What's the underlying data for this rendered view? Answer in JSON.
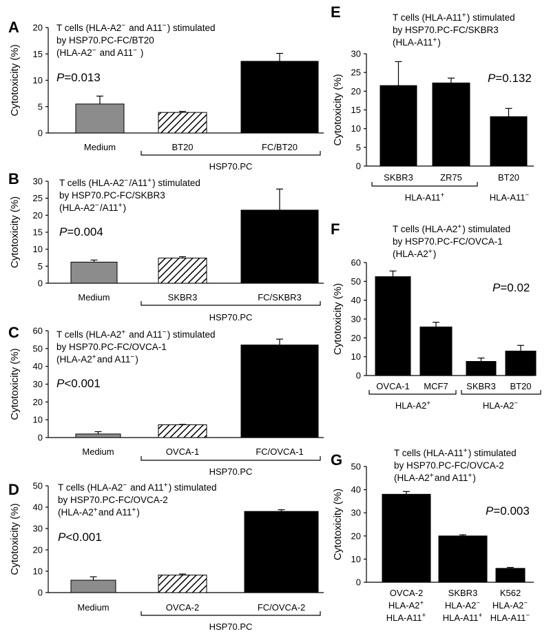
{
  "chart_data": [
    {
      "panel": "A",
      "type": "bar",
      "title": [
        "T cells (HLA-A2− and A11−) stimulated",
        "by HSP70.PC-FC/BT20",
        "(HLA-A2− and A11− )"
      ],
      "p_value": "=0.013",
      "ylabel": "Cytotoxicity (%)",
      "ylim": [
        0,
        20
      ],
      "yticks": [
        0,
        5,
        10,
        15,
        20
      ],
      "categories": [
        "Medium",
        "BT20",
        "FC/BT20"
      ],
      "values": [
        5.5,
        3.9,
        13.6
      ],
      "errors": [
        1.5,
        0.2,
        1.5
      ],
      "styles": [
        "gray",
        "hatch",
        "black"
      ],
      "group_label": "HSP70.PC"
    },
    {
      "panel": "B",
      "type": "bar",
      "title": [
        "T cells (HLA-A2−/A11+) stimulated",
        "by HSP70.PC-FC/SKBR3",
        "(HLA-A2−/A11+)"
      ],
      "p_value": "=0.004",
      "ylabel": "Cytotoxicity (%)",
      "ylim": [
        0,
        30
      ],
      "yticks": [
        0,
        5,
        10,
        15,
        20,
        25,
        30
      ],
      "categories": [
        "Medium",
        "SKBR3",
        "FC/SKBR3"
      ],
      "values": [
        6.2,
        7.4,
        21.5
      ],
      "errors": [
        0.6,
        0.4,
        6.2
      ],
      "styles": [
        "gray",
        "hatch",
        "black"
      ],
      "group_label": "HSP70.PC"
    },
    {
      "panel": "C",
      "type": "bar",
      "title": [
        "T cells (HLA-A2+ and A11−) stimulated",
        "by HSP70.PC-FC/OVCA-1",
        "(HLA-A2+and A11−)"
      ],
      "p_value": "<0.001",
      "ylabel": "Cytotoxicity (%)",
      "ylim": [
        0,
        60
      ],
      "yticks": [
        0,
        10,
        20,
        30,
        40,
        50,
        60
      ],
      "categories": [
        "Medium",
        "OVCA-1",
        "FC/OVCA-1"
      ],
      "values": [
        2,
        7.2,
        52
      ],
      "errors": [
        1.3,
        0.2,
        3.3
      ],
      "styles": [
        "gray",
        "hatch",
        "black"
      ],
      "group_label": "HSP70.PC"
    },
    {
      "panel": "D",
      "type": "bar",
      "title": [
        "T cells (HLA-A2− and A11+) stimulated",
        "by HSP70.PC-FC/OVCA-2",
        "(HLA-A2+and A11+)"
      ],
      "p_value": "<0.001",
      "ylabel": "Cytotoxicity (%)",
      "ylim": [
        0,
        50
      ],
      "yticks": [
        0,
        10,
        20,
        30,
        40,
        50
      ],
      "categories": [
        "Medium",
        "OVCA-2",
        "FC/OVCA-2"
      ],
      "values": [
        5.8,
        8.2,
        38
      ],
      "errors": [
        1.6,
        0.5,
        0.8
      ],
      "styles": [
        "gray",
        "hatch",
        "black"
      ],
      "group_label": "HSP70.PC"
    },
    {
      "panel": "E",
      "type": "bar",
      "title": [
        "T cells (HLA-A11+) stimulated",
        "by HSP70.PC-FC/SKBR3",
        "(HLA-A11+)"
      ],
      "p_value": "=0.132",
      "ylabel": "Cytotoxicity (%)",
      "ylim": [
        0,
        30
      ],
      "yticks": [
        0,
        5,
        10,
        15,
        20,
        25,
        30
      ],
      "categories": [
        "SKBR3",
        "ZR75",
        "BT20"
      ],
      "values": [
        21.5,
        22.2,
        13.2
      ],
      "errors": [
        6.4,
        1.3,
        2.2
      ],
      "styles": [
        "black",
        "black",
        "black"
      ],
      "groups": [
        {
          "label": "HLA-A11+",
          "span": [
            0,
            1
          ],
          "bracket": true
        },
        {
          "label": "HLA-A11−",
          "span": [
            2,
            2
          ],
          "bracket": false
        }
      ]
    },
    {
      "panel": "F",
      "type": "bar",
      "title": [
        "T cells (HLA-A2+) stimulated",
        "by HSP70.PC-FC/OVCA-1",
        "(HLA-A2+)"
      ],
      "p_value": "=0.02",
      "ylabel": "Cytotoxicity (%)",
      "ylim": [
        0,
        60
      ],
      "yticks": [
        0,
        10,
        20,
        30,
        40,
        50,
        60
      ],
      "categories": [
        "OVCA-1",
        "MCF7",
        "SKBR3",
        "BT20"
      ],
      "values": [
        52.5,
        25.8,
        7.5,
        13
      ],
      "errors": [
        3,
        2.5,
        1.8,
        3
      ],
      "styles": [
        "black",
        "black",
        "black",
        "black"
      ],
      "groups": [
        {
          "label": "HLA-A2+",
          "span": [
            0,
            1
          ],
          "bracket": true
        },
        {
          "label": "HLA-A2−",
          "span": [
            2,
            3
          ],
          "bracket": true
        }
      ]
    },
    {
      "panel": "G",
      "type": "bar",
      "title": [
        "T cells (HLA-A11+) stimulated",
        "by HSP70.PC-FC/OVCA-2",
        "(HLA-A2+and A11+)"
      ],
      "p_value": "=0.003",
      "ylabel": "Cytotoxicity (%)",
      "ylim": [
        0,
        50
      ],
      "yticks": [
        0,
        10,
        20,
        30,
        40,
        50
      ],
      "categories": [
        "OVCA-2",
        "SKBR3",
        "K562"
      ],
      "category_sublabels": [
        [
          "HLA-A2+",
          "HLA-A11+"
        ],
        [
          "HLA-A2−",
          "HLA-A11+"
        ],
        [
          "HLA-A2−",
          "HLA-A11−"
        ]
      ],
      "values": [
        38,
        20,
        6
      ],
      "errors": [
        1.2,
        0.5,
        0.4
      ],
      "styles": [
        "black",
        "black",
        "black"
      ]
    }
  ]
}
